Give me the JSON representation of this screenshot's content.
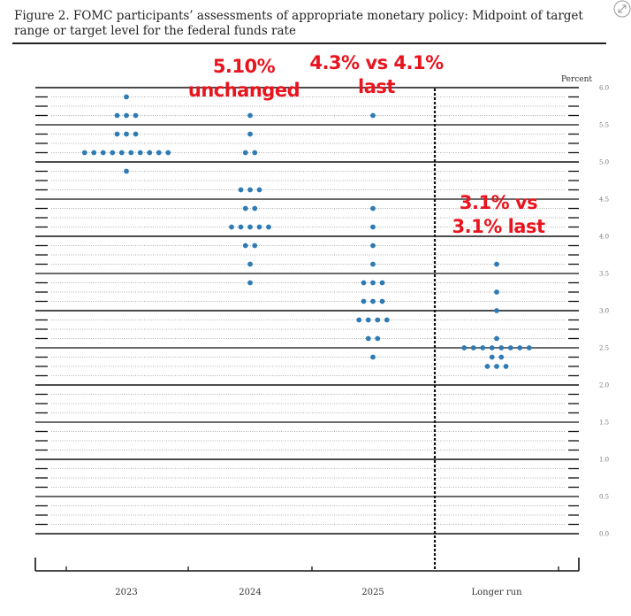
{
  "title": "Figure 2.  FOMC participants’ assessments of appropriate monetary policy:  Midpoint of target range or target level for the federal funds rate",
  "icons": {
    "corner": "expand-icon"
  },
  "chart_data": {
    "type": "scatter",
    "subtype": "dot-plot",
    "title": "Figure 2.  FOMC participants’ assessments of appropriate monetary policy:  Midpoint of target range or target level for the federal funds rate",
    "ylabel": "Percent",
    "ylim": [
      0.0,
      6.0
    ],
    "ytick_step": 0.5,
    "yticks": [
      "0.0",
      "0.5",
      "1.0",
      "1.5",
      "2.0",
      "2.5",
      "3.0",
      "3.5",
      "4.0",
      "4.5",
      "5.0",
      "5.5",
      "6.0"
    ],
    "categories": [
      "2023",
      "2024",
      "2025",
      "Longer run"
    ],
    "dot_color": "#2e7bb4",
    "annotation_color": "#e8141e",
    "dots": [
      [
        {
          "rate": 5.875,
          "count": 1
        },
        {
          "rate": 5.625,
          "count": 3
        },
        {
          "rate": 5.375,
          "count": 3
        },
        {
          "rate": 5.125,
          "count": 10
        },
        {
          "rate": 4.875,
          "count": 1
        }
      ],
      [
        {
          "rate": 5.625,
          "count": 1
        },
        {
          "rate": 5.375,
          "count": 1
        },
        {
          "rate": 5.125,
          "count": 2
        },
        {
          "rate": 4.625,
          "count": 3
        },
        {
          "rate": 4.375,
          "count": 2
        },
        {
          "rate": 4.125,
          "count": 5
        },
        {
          "rate": 3.875,
          "count": 2
        },
        {
          "rate": 3.625,
          "count": 1
        },
        {
          "rate": 3.375,
          "count": 1
        }
      ],
      [
        {
          "rate": 5.625,
          "count": 1
        },
        {
          "rate": 4.375,
          "count": 1
        },
        {
          "rate": 4.125,
          "count": 1
        },
        {
          "rate": 3.875,
          "count": 1
        },
        {
          "rate": 3.625,
          "count": 1
        },
        {
          "rate": 3.375,
          "count": 3
        },
        {
          "rate": 3.125,
          "count": 3
        },
        {
          "rate": 2.875,
          "count": 4
        },
        {
          "rate": 2.625,
          "count": 2
        },
        {
          "rate": 2.375,
          "count": 1
        }
      ],
      [
        {
          "rate": 3.625,
          "count": 1
        },
        {
          "rate": 3.25,
          "count": 1
        },
        {
          "rate": 3.0,
          "count": 1
        },
        {
          "rate": 2.625,
          "count": 1
        },
        {
          "rate": 2.5,
          "count": 8
        },
        {
          "rate": 2.375,
          "count": 2
        },
        {
          "rate": 2.25,
          "count": 3
        }
      ]
    ],
    "annotations": [
      {
        "lines": [
          "5.10%",
          "unchanged"
        ],
        "category": "2024"
      },
      {
        "lines": [
          "4.3% vs 4.1%",
          "last"
        ],
        "category": "2025"
      },
      {
        "lines": [
          "3.1% vs",
          "3.1% last"
        ],
        "category": "Longer run"
      }
    ],
    "grid": true,
    "legend": "none"
  }
}
